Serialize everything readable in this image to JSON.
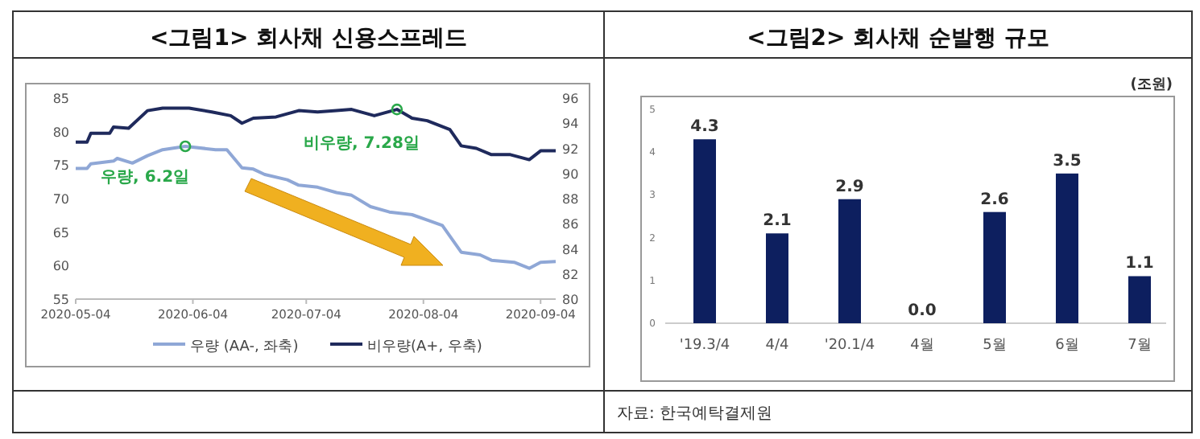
{
  "chart_data": [
    {
      "type": "line",
      "title": "<그림1> 회사채 신용스프레드",
      "legend": "bottom",
      "xlim": [
        "2020-05-04",
        "2020-09-08"
      ],
      "xticks": [
        "2020-05-04",
        "2020-06-04",
        "2020-07-04",
        "2020-08-04",
        "2020-09-04"
      ],
      "ylim": [
        55,
        85
      ],
      "yticks": [
        55,
        60,
        65,
        70,
        75,
        80,
        85
      ],
      "y2lim": [
        80,
        96
      ],
      "y2ticks": [
        80,
        82,
        84,
        86,
        88,
        90,
        92,
        94,
        96
      ],
      "annotations": [
        {
          "text": "우량, 6.2일",
          "x": "2020-06-02",
          "y": 77.8
        },
        {
          "text": "비우량, 7.28일",
          "x": "2020-07-28",
          "y": 83.3
        }
      ],
      "series": [
        {
          "name": "우량 (AA-, 좌축)",
          "color": "#8fa7d6",
          "x": [
            "2020-05-04",
            "2020-05-07",
            "2020-05-08",
            "2020-05-14",
            "2020-05-15",
            "2020-05-19",
            "2020-05-23",
            "2020-05-27",
            "2020-06-02",
            "2020-06-10",
            "2020-06-13",
            "2020-06-17",
            "2020-06-20",
            "2020-06-23",
            "2020-06-29",
            "2020-07-02",
            "2020-07-07",
            "2020-07-12",
            "2020-07-16",
            "2020-07-21",
            "2020-07-26",
            "2020-08-01",
            "2020-08-05",
            "2020-08-09",
            "2020-08-14",
            "2020-08-19",
            "2020-08-22",
            "2020-08-28",
            "2020-09-01",
            "2020-09-04",
            "2020-09-08"
          ],
          "values": [
            74.5,
            74.5,
            75.2,
            75.6,
            76,
            75.3,
            76.4,
            77.3,
            77.8,
            77.3,
            77.3,
            74.6,
            74.4,
            73.6,
            72.8,
            72,
            71.7,
            70.9,
            70.5,
            68.8,
            68,
            67.6,
            66.8,
            66,
            62,
            61.6,
            60.8,
            60.5,
            59.6,
            60.5,
            60.6
          ]
        },
        {
          "name": "비우량(A+, 우축)",
          "color": "#1f2a5c",
          "axis": "y2",
          "x": [
            "2020-05-04",
            "2020-05-07",
            "2020-05-08",
            "2020-05-13",
            "2020-05-14",
            "2020-05-18",
            "2020-05-23",
            "2020-05-27",
            "2020-06-03",
            "2020-06-09",
            "2020-06-14",
            "2020-06-17",
            "2020-06-20",
            "2020-06-26",
            "2020-07-02",
            "2020-07-07",
            "2020-07-12",
            "2020-07-16",
            "2020-07-22",
            "2020-07-28",
            "2020-08-01",
            "2020-08-05",
            "2020-08-11",
            "2020-08-14",
            "2020-08-18",
            "2020-08-22",
            "2020-08-27",
            "2020-09-01",
            "2020-09-04",
            "2020-09-08"
          ],
          "values": [
            92.5,
            92.5,
            93.2,
            93.2,
            93.7,
            93.6,
            95,
            95.2,
            95.2,
            94.9,
            94.6,
            94,
            94.4,
            94.5,
            95,
            94.9,
            95,
            95.1,
            94.6,
            95.1,
            94.4,
            94.2,
            93.5,
            92.2,
            92,
            91.5,
            91.5,
            91.1,
            91.8,
            91.8
          ]
        }
      ]
    },
    {
      "type": "bar",
      "title": "<그림2> 회사채 순발행 규모",
      "ylabel": "(조원)",
      "categories": [
        "'19.3/4",
        "4/4",
        "'20.1/4",
        "4월",
        "5월",
        "6월",
        "7월"
      ],
      "values": [
        4.3,
        2.1,
        2.9,
        0.0,
        2.6,
        3.5,
        1.1
      ],
      "color": "#0d1f5f",
      "ylim": [
        0,
        5
      ],
      "yticks": [
        0,
        1,
        2,
        3,
        4,
        5
      ],
      "value_labels": [
        "4.3",
        "2.1",
        "2.9",
        "0.0",
        "2.6",
        "3.5",
        "1.1"
      ],
      "annotations": [
        "자료: 한국예탁결제원"
      ]
    }
  ]
}
